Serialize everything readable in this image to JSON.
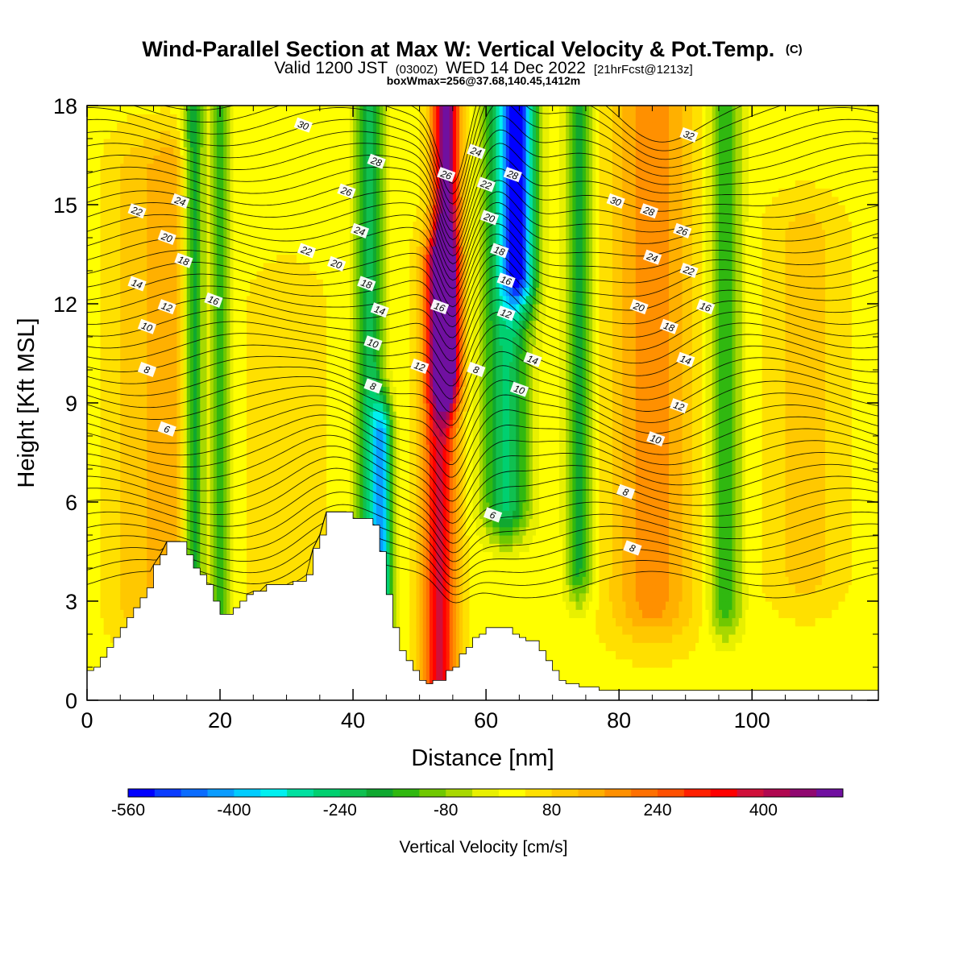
{
  "chart_data": {
    "type": "heatmap",
    "title": "Wind-Parallel Section at Max W: Vertical Velocity & Pot.Temp.",
    "title_mark": "(C)",
    "subtitle_main": "Valid 1200 JST",
    "subtitle_utc": "(0300Z)",
    "subtitle_date": "WED 14 Dec 2022",
    "subtitle_run": "[21hrFcst@1213z]",
    "subtitle2": "boxWmax=256@37.68,140.45,1412m",
    "xlabel": "Distance [nm]",
    "ylabel": "Height [Kft MSL]",
    "xlim": [
      0,
      119
    ],
    "ylim": [
      0,
      18
    ],
    "x_ticks": [
      0,
      20,
      40,
      60,
      80,
      100
    ],
    "y_ticks": [
      0,
      3,
      6,
      9,
      12,
      15,
      18
    ],
    "colorbar": {
      "label": "Vertical Velocity [cm/s]",
      "min": -560,
      "max": 520,
      "step": 40,
      "tick_values": [
        -560,
        -400,
        -240,
        -80,
        80,
        240,
        400
      ],
      "colors": [
        "#0000ff",
        "#0a3cff",
        "#0a6cff",
        "#0a9cff",
        "#00ccff",
        "#00f0f0",
        "#00e0a0",
        "#00d070",
        "#10c050",
        "#10a830",
        "#30b810",
        "#70c800",
        "#a8d800",
        "#e8f000",
        "#ffff00",
        "#ffe000",
        "#ffc800",
        "#ffb000",
        "#ff9000",
        "#ff7000",
        "#ff5000",
        "#ff2000",
        "#ff0000",
        "#d0103a",
        "#b00850",
        "#900870",
        "#7010a0"
      ]
    },
    "terrain": {
      "x": [
        0,
        1,
        2,
        3,
        4,
        5,
        6,
        7,
        8,
        9,
        10,
        11,
        12,
        13,
        14,
        15,
        16,
        17,
        18,
        19,
        20,
        21,
        22,
        23,
        24,
        25,
        26,
        27,
        28,
        29,
        30,
        31,
        32,
        33,
        34,
        35,
        36,
        37,
        38,
        39,
        40,
        41,
        42,
        43,
        44,
        45,
        46,
        47,
        48,
        49,
        50,
        51,
        52,
        53,
        54,
        55,
        56,
        57,
        58,
        59,
        60,
        61,
        62,
        63,
        64,
        65,
        66,
        67,
        68,
        69,
        70,
        71,
        72,
        73,
        74,
        75,
        76,
        77,
        78,
        79,
        80,
        85,
        90,
        95,
        100,
        105,
        110,
        115,
        119
      ],
      "height_kft": [
        0.9,
        1.0,
        1.3,
        1.6,
        1.9,
        2.2,
        2.5,
        2.8,
        3.1,
        3.4,
        4.1,
        4.4,
        4.8,
        4.8,
        4.8,
        4.4,
        4.0,
        3.8,
        3.5,
        3.0,
        2.6,
        2.6,
        2.8,
        3.0,
        3.2,
        3.3,
        3.3,
        3.5,
        3.5,
        3.5,
        3.5,
        3.6,
        3.6,
        3.8,
        4.6,
        5.0,
        5.7,
        5.7,
        5.7,
        5.7,
        5.5,
        5.5,
        5.5,
        5.3,
        4.5,
        3.2,
        2.2,
        1.5,
        1.2,
        0.9,
        0.6,
        0.5,
        0.6,
        0.6,
        0.9,
        1.0,
        1.4,
        1.6,
        1.9,
        2.0,
        2.2,
        2.2,
        2.2,
        2.2,
        2.0,
        1.9,
        1.8,
        1.8,
        1.5,
        1.2,
        0.9,
        0.6,
        0.5,
        0.5,
        0.4,
        0.4,
        0.4,
        0.3,
        0.3,
        0.3,
        0.3,
        0.3,
        0.3,
        0.3,
        0.3,
        0.3,
        0.3,
        0.3,
        0.3
      ]
    },
    "vertical_velocity_features_cm_s": [
      {
        "x_center": 7.5,
        "width": 4,
        "z_bottom": 3.0,
        "z_top": 16,
        "value": 70
      },
      {
        "x_center": 12.5,
        "width": 3,
        "z_bottom": 2.5,
        "z_top": 16,
        "value": 110
      },
      {
        "x_center": 16,
        "width": 1.5,
        "z_bottom": 3.5,
        "z_top": 18,
        "value": -220
      },
      {
        "x_center": 20,
        "width": 1.5,
        "z_bottom": 2.5,
        "z_top": 18,
        "value": -180
      },
      {
        "x_center": 30,
        "width": 5,
        "z_bottom": 2.0,
        "z_top": 12,
        "value": 40
      },
      {
        "x_center": 42.5,
        "width": 2.0,
        "z_bottom": 2.0,
        "z_top": 18,
        "value": -260
      },
      {
        "x_center": 44.5,
        "width": 1.5,
        "z_bottom": 2.5,
        "z_top": 8,
        "value": -340
      },
      {
        "x_center": 53,
        "width": 2.5,
        "z_bottom": 0.5,
        "z_top": 13,
        "value": 340
      },
      {
        "x_center": 54,
        "width": 2.0,
        "z_bottom": 10,
        "z_top": 18,
        "value": 480
      },
      {
        "x_center": 63,
        "width": 3.5,
        "z_bottom": 6.0,
        "z_top": 18,
        "value": -280
      },
      {
        "x_center": 65,
        "width": 2.5,
        "z_bottom": 13,
        "z_top": 18,
        "value": -400
      },
      {
        "x_center": 74,
        "width": 2.0,
        "z_bottom": 4.0,
        "z_top": 18,
        "value": -200
      },
      {
        "x_center": 85,
        "width": 6.0,
        "z_bottom": 3.0,
        "z_top": 18,
        "value": 150
      },
      {
        "x_center": 96,
        "width": 2.5,
        "z_bottom": 3.0,
        "z_top": 18,
        "value": -180
      },
      {
        "x_center": 108,
        "width": 5.0,
        "z_bottom": 4.0,
        "z_top": 14,
        "value": 70
      }
    ],
    "potential_temperature_contour_labels": [
      {
        "value": "30",
        "x": 32.5,
        "z": 17.4
      },
      {
        "value": "28",
        "x": 43.5,
        "z": 16.3
      },
      {
        "value": "26",
        "x": 39.0,
        "z": 15.4
      },
      {
        "value": "24",
        "x": 41.0,
        "z": 14.2
      },
      {
        "value": "22",
        "x": 33.0,
        "z": 13.6
      },
      {
        "value": "20",
        "x": 37.5,
        "z": 13.2
      },
      {
        "value": "18",
        "x": 42.0,
        "z": 12.6
      },
      {
        "value": "24",
        "x": 14.0,
        "z": 15.1
      },
      {
        "value": "22",
        "x": 7.5,
        "z": 14.8
      },
      {
        "value": "20",
        "x": 12.0,
        "z": 14.0
      },
      {
        "value": "18",
        "x": 14.5,
        "z": 13.3
      },
      {
        "value": "14",
        "x": 7.5,
        "z": 12.6
      },
      {
        "value": "16",
        "x": 19.0,
        "z": 12.1
      },
      {
        "value": "12",
        "x": 12.0,
        "z": 11.9
      },
      {
        "value": "10",
        "x": 9.0,
        "z": 11.3
      },
      {
        "value": "8",
        "x": 9.0,
        "z": 10.0
      },
      {
        "value": "6",
        "x": 12.0,
        "z": 8.2
      },
      {
        "value": "14",
        "x": 44.0,
        "z": 11.8
      },
      {
        "value": "10",
        "x": 43.0,
        "z": 10.8
      },
      {
        "value": "8",
        "x": 43.0,
        "z": 9.5
      },
      {
        "value": "12",
        "x": 50.0,
        "z": 10.1
      },
      {
        "value": "26",
        "x": 54.0,
        "z": 15.9
      },
      {
        "value": "16",
        "x": 53.0,
        "z": 11.9
      },
      {
        "value": "24",
        "x": 58.5,
        "z": 16.6
      },
      {
        "value": "22",
        "x": 60.0,
        "z": 15.6
      },
      {
        "value": "28",
        "x": 64.0,
        "z": 15.9
      },
      {
        "value": "20",
        "x": 60.5,
        "z": 14.6
      },
      {
        "value": "18",
        "x": 62.0,
        "z": 13.6
      },
      {
        "value": "16",
        "x": 63.0,
        "z": 12.7
      },
      {
        "value": "12",
        "x": 63.0,
        "z": 11.7
      },
      {
        "value": "14",
        "x": 67.0,
        "z": 10.3
      },
      {
        "value": "10",
        "x": 65.0,
        "z": 9.4
      },
      {
        "value": "8",
        "x": 58.5,
        "z": 10.0
      },
      {
        "value": "6",
        "x": 61.0,
        "z": 5.6
      },
      {
        "value": "30",
        "x": 79.5,
        "z": 15.1
      },
      {
        "value": "28",
        "x": 84.5,
        "z": 14.8
      },
      {
        "value": "32",
        "x": 90.5,
        "z": 17.1
      },
      {
        "value": "26",
        "x": 89.5,
        "z": 14.2
      },
      {
        "value": "24",
        "x": 85.0,
        "z": 13.4
      },
      {
        "value": "22",
        "x": 90.5,
        "z": 13.0
      },
      {
        "value": "20",
        "x": 83.0,
        "z": 11.9
      },
      {
        "value": "18",
        "x": 87.5,
        "z": 11.3
      },
      {
        "value": "16",
        "x": 93.0,
        "z": 11.9
      },
      {
        "value": "14",
        "x": 90.0,
        "z": 10.3
      },
      {
        "value": "12",
        "x": 89.0,
        "z": 8.9
      },
      {
        "value": "10",
        "x": 85.5,
        "z": 7.9
      },
      {
        "value": "8",
        "x": 81.0,
        "z": 6.3
      },
      {
        "value": "8",
        "x": 82.0,
        "z": 4.6
      }
    ]
  }
}
